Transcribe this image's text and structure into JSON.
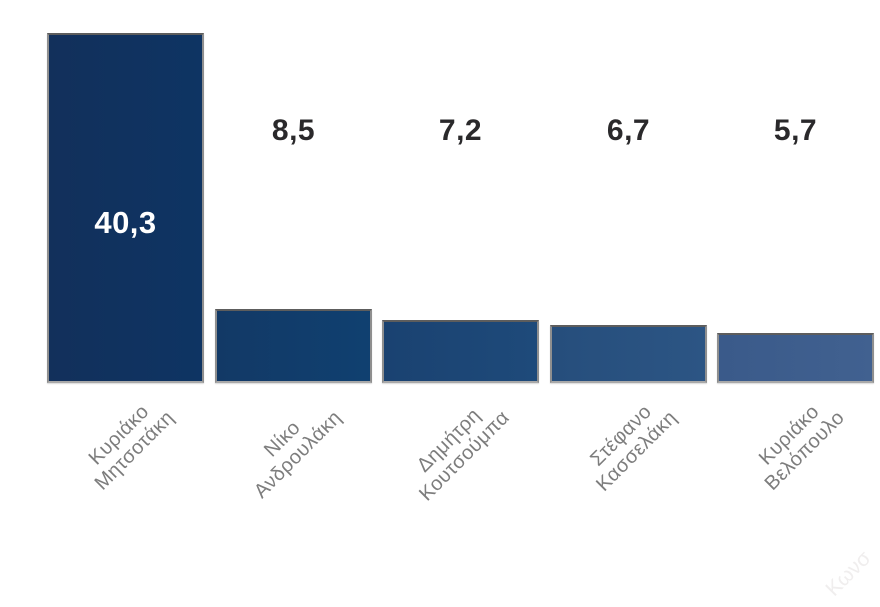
{
  "chart_data": {
    "type": "bar",
    "title": "",
    "xlabel": "",
    "ylabel": "",
    "ylim": [
      0,
      40.3
    ],
    "grid": false,
    "legend": null,
    "categories": [
      "Κυριάκο Μητσοτάκη",
      "Νίκο Ανδρουλάκη",
      "Δημήτρη Κουτσούμπα",
      "Στέφανο Κασσελάκη",
      "Κυριάκο Βελόπουλο"
    ],
    "category_lines": [
      [
        "Κυριάκο",
        "Μητσοτάκη"
      ],
      [
        "Νίκο",
        "Ανδρουλάκη"
      ],
      [
        "Δημήτρη",
        "Κουτσούμπα"
      ],
      [
        "Στέφανο",
        "Κασσελάκη"
      ],
      [
        "Κυριάκο",
        "Βελόπουλο"
      ]
    ],
    "values": [
      40.3,
      8.5,
      7.2,
      6.7,
      5.7
    ],
    "value_labels": [
      "40,3",
      "8,5",
      "7,2",
      "6,7",
      "5,7"
    ],
    "bar_colors": [
      {
        "from": "#12305b",
        "to": "#0e3463"
      },
      {
        "from": "#123966",
        "to": "#104070"
      },
      {
        "from": "#1a4271",
        "to": "#1e4a7a"
      },
      {
        "from": "#264e7c",
        "to": "#2c5584"
      },
      {
        "from": "#3a5a8a",
        "to": "#416190"
      }
    ],
    "value_label_color": "#2a292b",
    "inside_value_label_color": "#ffffff",
    "tick_label_color": "#7d7d7d",
    "bar_border_color": "#8f8f8f"
  },
  "watermark": {
    "text": "Κωνσ"
  }
}
